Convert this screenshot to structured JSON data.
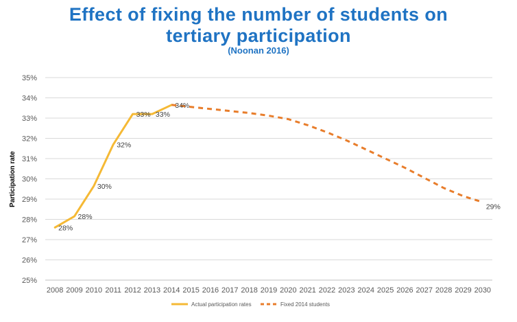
{
  "chart_data": {
    "type": "line",
    "title_line1": "Effect of fixing the number of students on",
    "title_line2": "tertiary participation",
    "subtitle": "(Noonan 2016)",
    "ylabel": "Participation rate",
    "xlabel": "",
    "ylim": [
      25,
      35
    ],
    "yticks": [
      "25%",
      "26%",
      "27%",
      "28%",
      "29%",
      "30%",
      "31%",
      "32%",
      "33%",
      "34%",
      "35%"
    ],
    "x": [
      2008,
      2009,
      2010,
      2011,
      2012,
      2013,
      2014,
      2015,
      2016,
      2017,
      2018,
      2019,
      2020,
      2021,
      2022,
      2023,
      2024,
      2025,
      2026,
      2027,
      2028,
      2029,
      2030
    ],
    "grid": true,
    "legend_position": "bottom",
    "series": [
      {
        "name": "Actual participation rates",
        "color": "#f5b935",
        "style": "solid",
        "x": [
          2008,
          2009,
          2010,
          2011,
          2012,
          2013,
          2014
        ],
        "values": [
          27.6,
          28.15,
          29.65,
          31.7,
          33.2,
          33.2,
          33.65
        ],
        "labels": [
          "28%",
          "28%",
          "30%",
          "32%",
          "33%",
          "33%",
          "34%"
        ]
      },
      {
        "name": "Fixed 2014 students",
        "color": "#e87d2b",
        "style": "dashed",
        "x": [
          2014,
          2015,
          2016,
          2017,
          2018,
          2019,
          2020,
          2021,
          2022,
          2023,
          2024,
          2025,
          2026,
          2027,
          2028,
          2029,
          2030
        ],
        "values": [
          33.65,
          33.55,
          33.45,
          33.35,
          33.25,
          33.12,
          32.95,
          32.65,
          32.3,
          31.9,
          31.45,
          31.0,
          30.55,
          30.05,
          29.55,
          29.15,
          28.85
        ],
        "labels": [
          "",
          "",
          "",
          "",
          "",
          "",
          "",
          "",
          "",
          "",
          "",
          "",
          "",
          "",
          "",
          "",
          "29%"
        ]
      }
    ]
  }
}
